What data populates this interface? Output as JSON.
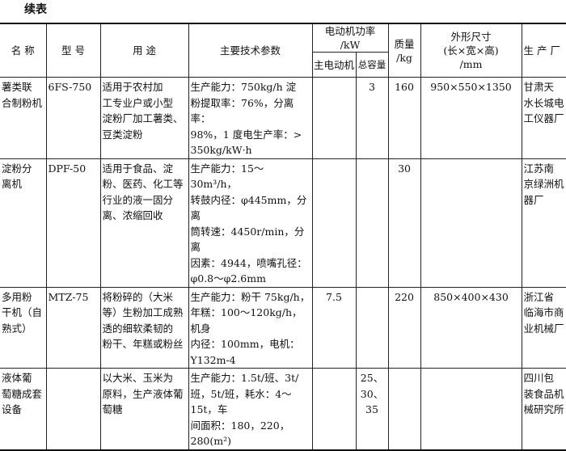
{
  "caption": "续表",
  "headers": {
    "name": "名 称",
    "model": "型 号",
    "use": "用 途",
    "params": "主要技术参数",
    "power": "电动机功率\n/kW",
    "power_main": "主电动机",
    "power_total": "总容量",
    "mass": "质量\n/kg",
    "size": "外形尺寸\n(长×宽×高)\n/mm",
    "maker": "生 产 厂"
  },
  "rows": [
    {
      "name": "  薯类联\n合制粉机",
      "model": "6FS-750",
      "use": "  适用于农村加\n工专业户或小型\n淀粉厂加工薯类、\n豆类淀粉",
      "params": "  生产能力：750kg/h 淀\n粉提取率：76%，分离率：\n98%，1 度电生产率：>\n350kg/kW·h",
      "power_main": "",
      "power_total": "3",
      "mass": "160",
      "size": "950×550×1350",
      "maker": "  甘肃天\n水长城电\n工仪器厂"
    },
    {
      "name": "  淀粉分\n离机",
      "model": "DPF-50",
      "use": "  适用于食品、淀\n粉、医药、化工等\n行业的液一固分\n离、浓缩回收",
      "params": "  生产能力：15～30m³/h，\n转鼓内径：φ445mm，分离\n筒转速：4450r/min，分离\n因素：4944，喷嘴孔径：\nφ0.8～φ2.6mm",
      "power_main": "",
      "power_total": "",
      "mass": "30",
      "size": "",
      "maker": "  江苏南\n京绿洲机\n器厂"
    },
    {
      "name": "  多用粉\n干机（自\n熟式）",
      "model": "MTZ-75",
      "use": "  将粉碎的（大米\n等）生粉加工成熟\n透的细软柔韧的\n粉干、年糕或粉丝",
      "params": "  生产能力：粉干 75kg/h，\n年糕：100～120kg/h，机身\n内径：100mm，电机：\nY132m-4",
      "power_main": "7.5",
      "power_total": "",
      "mass": "220",
      "size": "850×400×430",
      "maker": "  浙江省\n临海市商\n业机械厂"
    },
    {
      "name": "  液体葡\n萄糖成套\n设备",
      "model": "",
      "use": "  以大米、玉米为\n原料，生产液体葡\n萄糖",
      "params": "  生产能力：1.5t/班、3t/\n班，5t/班，耗水：4～15t，车\n间面积：180，220，280(m²)",
      "power_main": "",
      "power_total": "25、30、\n35",
      "mass": "",
      "size": "",
      "maker": "  四川包\n装食品机\n械研究所"
    }
  ]
}
